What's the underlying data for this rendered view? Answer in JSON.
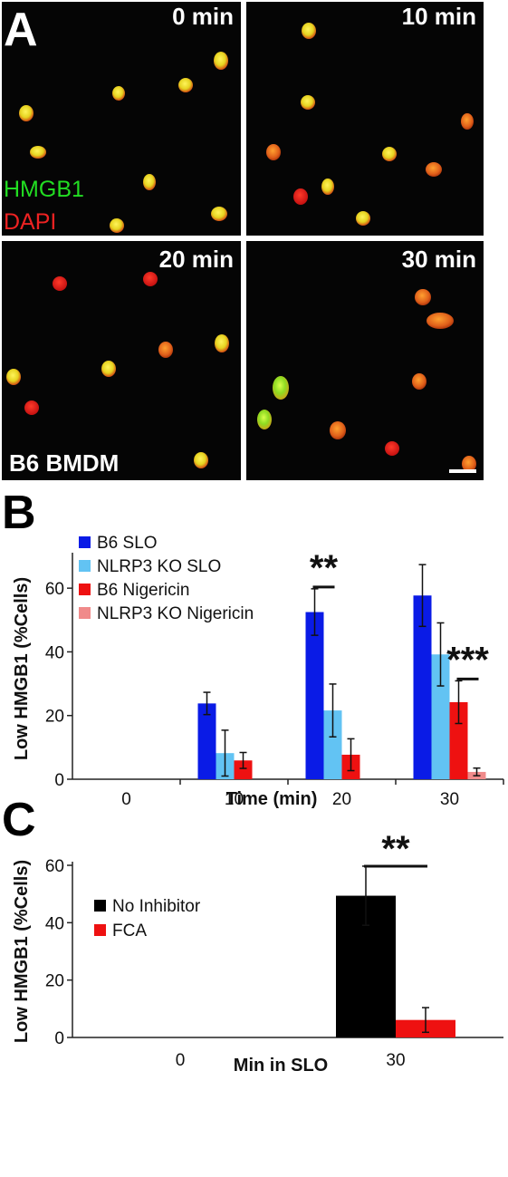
{
  "panel_a": {
    "letter": "A",
    "tiles": [
      {
        "label": "0 min"
      },
      {
        "label": "10 min"
      },
      {
        "label": "20 min"
      },
      {
        "label": "30 min"
      }
    ],
    "stain_labels": [
      "HMGB1",
      "DAPI"
    ],
    "stain_colors": [
      "#22dd22",
      "#ee2222"
    ],
    "strain_label": "B6 BMDM"
  },
  "chart_data": [
    {
      "panel": "B",
      "type": "bar",
      "xlabel": "Time (min)",
      "ylabel": "Low HMGB1 (%Cells)",
      "ylim": [
        0,
        70
      ],
      "yticks": [
        0,
        20,
        40,
        60
      ],
      "categories": [
        "0",
        "10",
        "20",
        "30"
      ],
      "legend_position": "top-left",
      "series": [
        {
          "name": "B6 SLO",
          "color": "#0a1be6",
          "values": [
            0,
            23.8,
            52.5,
            57.7
          ],
          "errors": [
            0,
            3.5,
            7.3,
            9.7
          ]
        },
        {
          "name": "NLRP3 KO SLO",
          "color": "#62c3f3",
          "values": [
            0,
            8.2,
            21.6,
            39.2
          ],
          "errors": [
            0,
            7.2,
            8.3,
            9.9
          ]
        },
        {
          "name": "B6 Nigericin",
          "color": "#ee1111",
          "values": [
            0,
            5.9,
            7.7,
            24.2
          ],
          "errors": [
            0,
            2.5,
            5.0,
            6.7
          ]
        },
        {
          "name": "NLRP3 KO Nigericin",
          "color": "#f08a8a",
          "values": [
            0,
            0,
            0,
            2.3
          ],
          "errors": [
            0,
            0,
            0,
            1.2
          ]
        }
      ],
      "significance": [
        {
          "label": "**",
          "category": "20",
          "between": [
            0,
            1
          ]
        },
        {
          "label": "***",
          "category": "30",
          "between": [
            2,
            3
          ]
        }
      ]
    },
    {
      "panel": "C",
      "type": "bar",
      "xlabel": "Min in SLO",
      "ylabel": "Low HMGB1 (%Cells)",
      "ylim": [
        0,
        60
      ],
      "yticks": [
        0,
        20,
        40,
        60
      ],
      "categories": [
        "0",
        "30"
      ],
      "legend_position": "top-left",
      "series": [
        {
          "name": "No Inhibitor",
          "color": "#000000",
          "values": [
            0,
            49.4
          ],
          "errors": [
            0,
            10.3
          ]
        },
        {
          "name": "FCA",
          "color": "#ee1111",
          "values": [
            0,
            6.1
          ],
          "errors": [
            0,
            4.3
          ]
        }
      ],
      "significance": [
        {
          "label": "**",
          "category": "30",
          "between": [
            0,
            1
          ]
        }
      ]
    }
  ]
}
